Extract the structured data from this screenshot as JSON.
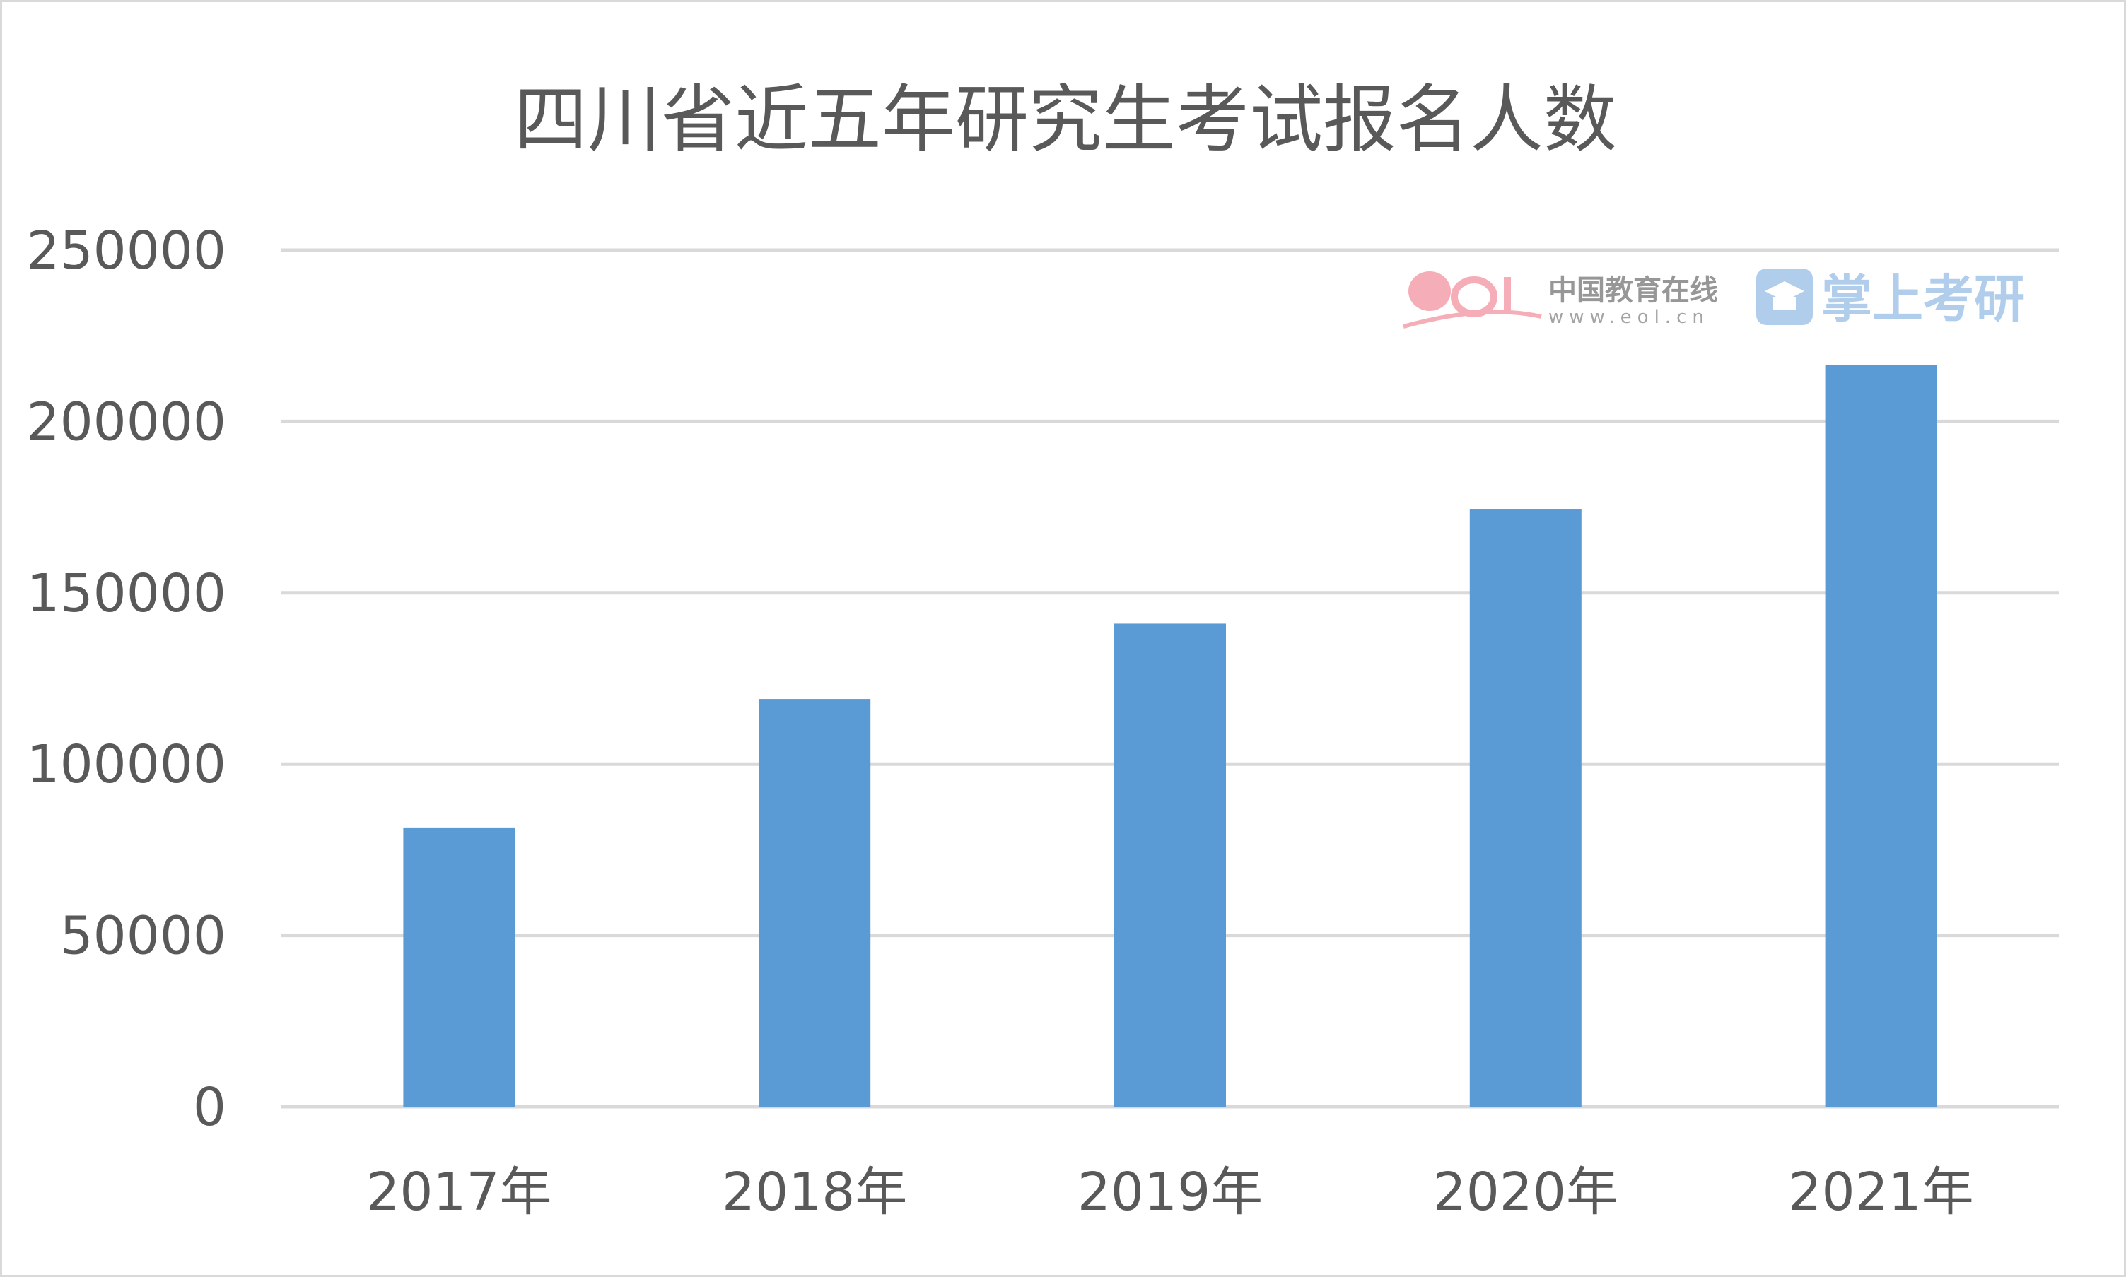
{
  "chart_data": {
    "type": "bar",
    "title": "四川省近五年研究生考试报名人数",
    "categories": [
      "2017年",
      "2018年",
      "2019年",
      "2020年",
      "2021年"
    ],
    "values": [
      81500,
      119000,
      141000,
      174500,
      216500
    ],
    "ylim": [
      0,
      250000
    ],
    "yticks": [
      "0",
      "50000",
      "100000",
      "150000",
      "200000",
      "250000"
    ],
    "grid": true,
    "legend": "none",
    "bar_color": "#5b9bd5"
  },
  "watermark": {
    "logo_text": "eol",
    "site_cn": "中国教育在线",
    "site_url": "www.eol.cn",
    "brand": "掌上考研"
  }
}
